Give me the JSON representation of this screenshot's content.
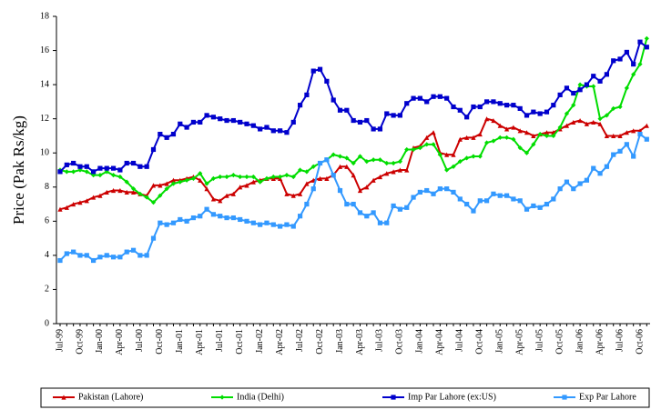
{
  "chart_data": {
    "type": "line",
    "y_label": "Price (Pak Rs/kg)",
    "categories": [
      "Jul-99",
      null,
      null,
      "Oct-99",
      null,
      null,
      "Jan-00",
      null,
      null,
      "Apr-00",
      null,
      null,
      "Jul-00",
      null,
      null,
      "Oct-00",
      null,
      null,
      "Jan-01",
      null,
      null,
      "Apr-01",
      null,
      null,
      "Jul-01",
      null,
      null,
      "Oct-01",
      null,
      null,
      "Jan-02",
      null,
      null,
      "Apr-02",
      null,
      null,
      "Jul-02",
      null,
      null,
      "Oct-02",
      null,
      null,
      "Jan-03",
      null,
      null,
      "Apr-03",
      null,
      null,
      "Jul-03",
      null,
      null,
      "Oct-03",
      null,
      null,
      "Jan-04",
      null,
      null,
      "Apr-04",
      null,
      null,
      "Jul-04",
      null,
      null,
      "Oct-04",
      null,
      null,
      "Jan-05",
      null,
      null,
      "Apr-05",
      null,
      null,
      "Jul-05",
      null,
      null,
      "Oct-05",
      null,
      null,
      "Jan-06",
      null,
      null,
      "Apr-06",
      null,
      null,
      "Jul-06",
      null,
      null,
      "Oct-06",
      null
    ],
    "ylim": [
      0,
      18
    ],
    "yticks": [
      0,
      2,
      4,
      6,
      8,
      10,
      12,
      14,
      16,
      18
    ],
    "grid": false,
    "legend": "bottom",
    "series": [
      {
        "name": "Pakistan (Lahore)",
        "color": "#cc0000",
        "marker": "triangle",
        "values": [
          6.7,
          6.8,
          7.0,
          7.1,
          7.2,
          7.4,
          7.5,
          7.7,
          7.8,
          7.8,
          7.7,
          7.7,
          7.6,
          7.5,
          8.1,
          8.1,
          8.2,
          8.4,
          8.4,
          8.5,
          8.6,
          8.4,
          7.9,
          7.3,
          7.2,
          7.5,
          7.6,
          8.0,
          8.1,
          8.3,
          8.4,
          8.5,
          8.5,
          8.5,
          7.6,
          7.5,
          7.6,
          8.2,
          8.4,
          8.5,
          8.5,
          8.7,
          9.2,
          9.2,
          8.7,
          7.8,
          8.0,
          8.4,
          8.6,
          8.8,
          8.9,
          9.0,
          9.0,
          10.3,
          10.4,
          10.9,
          11.2,
          10.0,
          9.9,
          9.9,
          10.8,
          10.9,
          10.9,
          11.1,
          12.0,
          11.9,
          11.6,
          11.4,
          11.5,
          11.3,
          11.2,
          11.0,
          11.1,
          11.2,
          11.2,
          11.4,
          11.6,
          11.8,
          11.9,
          11.7,
          11.8,
          11.7,
          11.0,
          11.0,
          11.0,
          11.2,
          11.3,
          11.3,
          11.6
        ]
      },
      {
        "name": "India (Delhi)",
        "color": "#00dd00",
        "marker": "diamond",
        "values": [
          9.0,
          8.9,
          8.9,
          9.0,
          8.9,
          8.7,
          8.7,
          8.9,
          8.7,
          8.6,
          8.3,
          7.9,
          7.6,
          7.4,
          7.1,
          7.5,
          7.9,
          8.2,
          8.3,
          8.4,
          8.5,
          8.8,
          8.2,
          8.5,
          8.6,
          8.6,
          8.7,
          8.6,
          8.6,
          8.6,
          8.3,
          8.5,
          8.6,
          8.6,
          8.7,
          8.6,
          9.0,
          8.9,
          9.2,
          9.4,
          9.6,
          9.9,
          9.8,
          9.7,
          9.4,
          9.8,
          9.5,
          9.6,
          9.6,
          9.4,
          9.4,
          9.5,
          10.2,
          10.2,
          10.3,
          10.5,
          10.5,
          9.9,
          9.0,
          9.2,
          9.5,
          9.7,
          9.8,
          9.8,
          10.6,
          10.7,
          10.9,
          10.9,
          10.8,
          10.3,
          10.0,
          10.5,
          11.1,
          11.0,
          11.0,
          11.5,
          12.3,
          12.8,
          14.0,
          13.9,
          13.9,
          12.0,
          12.2,
          12.6,
          12.7,
          13.8,
          14.6,
          15.2,
          16.7
        ]
      },
      {
        "name": "Imp Par Lahore (ex:US)",
        "color": "#0000cc",
        "marker": "square",
        "values": [
          8.9,
          9.3,
          9.4,
          9.2,
          9.2,
          8.9,
          9.1,
          9.1,
          9.1,
          9.0,
          9.4,
          9.4,
          9.2,
          9.2,
          10.2,
          11.1,
          10.9,
          11.1,
          11.7,
          11.5,
          11.8,
          11.8,
          12.2,
          12.1,
          12.0,
          11.9,
          11.9,
          11.8,
          11.7,
          11.6,
          11.4,
          11.5,
          11.3,
          11.3,
          11.2,
          11.8,
          12.8,
          13.4,
          14.8,
          14.9,
          14.2,
          13.1,
          12.5,
          12.5,
          11.9,
          11.8,
          11.9,
          11.4,
          11.4,
          12.3,
          12.2,
          12.2,
          12.9,
          13.2,
          13.2,
          13.0,
          13.3,
          13.3,
          13.2,
          12.7,
          12.5,
          12.1,
          12.7,
          12.7,
          13.0,
          13.0,
          12.9,
          12.8,
          12.8,
          12.6,
          12.2,
          12.4,
          12.3,
          12.4,
          12.8,
          13.4,
          13.8,
          13.5,
          13.7,
          14.0,
          14.5,
          14.2,
          14.6,
          15.4,
          15.5,
          15.9,
          15.2,
          16.5,
          16.2
        ]
      },
      {
        "name": "Exp Par Lahore",
        "color": "#3399ff",
        "marker": "square",
        "values": [
          3.7,
          4.1,
          4.2,
          4.0,
          4.0,
          3.7,
          3.9,
          4.0,
          3.9,
          3.9,
          4.2,
          4.3,
          4.0,
          4.0,
          5.0,
          5.9,
          5.8,
          5.9,
          6.1,
          6.0,
          6.2,
          6.3,
          6.7,
          6.4,
          6.3,
          6.2,
          6.2,
          6.1,
          6.0,
          5.9,
          5.8,
          5.9,
          5.8,
          5.7,
          5.8,
          5.7,
          6.3,
          7.0,
          7.9,
          9.4,
          9.6,
          8.7,
          7.8,
          7.0,
          7.0,
          6.5,
          6.3,
          6.5,
          5.9,
          5.9,
          6.9,
          6.7,
          6.8,
          7.4,
          7.7,
          7.8,
          7.6,
          7.9,
          7.9,
          7.7,
          7.3,
          7.0,
          6.6,
          7.2,
          7.2,
          7.6,
          7.5,
          7.5,
          7.3,
          7.2,
          6.7,
          6.9,
          6.8,
          7.0,
          7.3,
          7.9,
          8.3,
          7.9,
          8.2,
          8.4,
          9.1,
          8.8,
          9.2,
          9.9,
          10.1,
          10.5,
          9.8,
          11.1,
          10.8
        ]
      }
    ]
  }
}
